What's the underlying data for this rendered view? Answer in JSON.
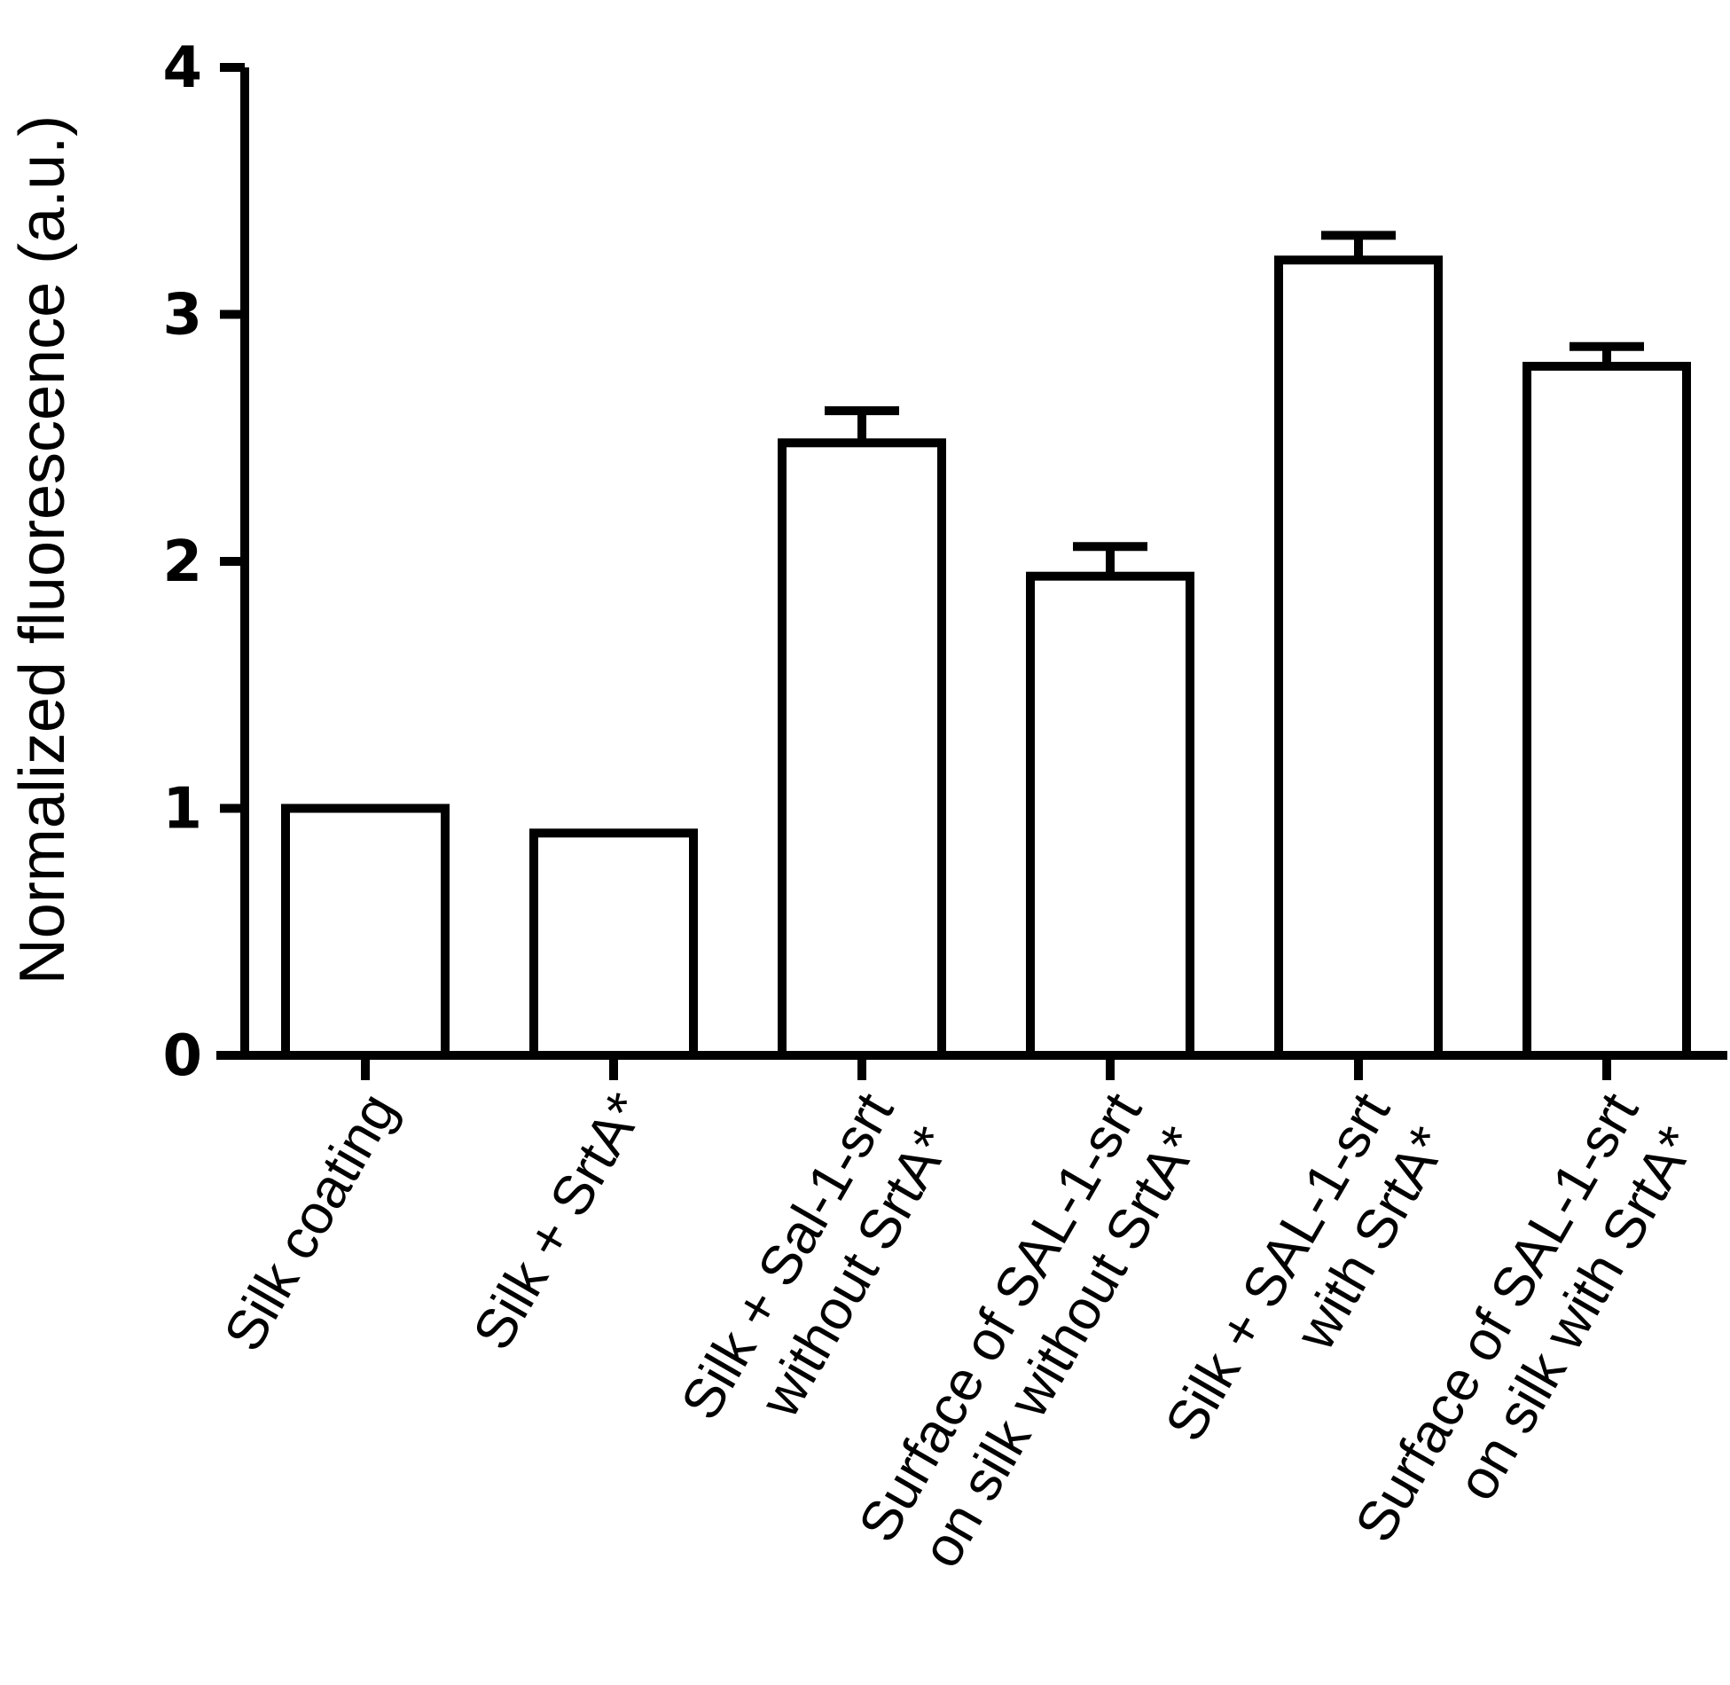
{
  "chart_data": {
    "type": "bar",
    "title": "",
    "ylabel": "Normalized fluorescence (a.u.)",
    "xlabel": "",
    "ylim": [
      0,
      4
    ],
    "yticks": [
      0,
      1,
      2,
      3,
      4
    ],
    "ytick_labels": [
      "0",
      "1",
      "2",
      "3",
      "4"
    ],
    "categories": [
      [
        "Silk coating"
      ],
      [
        "Silk + SrtA*"
      ],
      [
        "Silk + Sal-1-srt",
        "without SrtA*"
      ],
      [
        "Surface of SAL-1-srt",
        "on silk without SrtA*"
      ],
      [
        "Silk + SAL-1-srt",
        "with SrtA*"
      ],
      [
        "Surface of SAL-1-srt",
        "on silk with SrtA*"
      ]
    ],
    "values": [
      1.0,
      0.9,
      2.48,
      1.94,
      3.22,
      2.79
    ],
    "errors": [
      0,
      0,
      0.13,
      0.12,
      0.1,
      0.08
    ],
    "bar_fill": "#ffffff",
    "bar_stroke": "#000000",
    "grid": false,
    "legend": "none"
  }
}
